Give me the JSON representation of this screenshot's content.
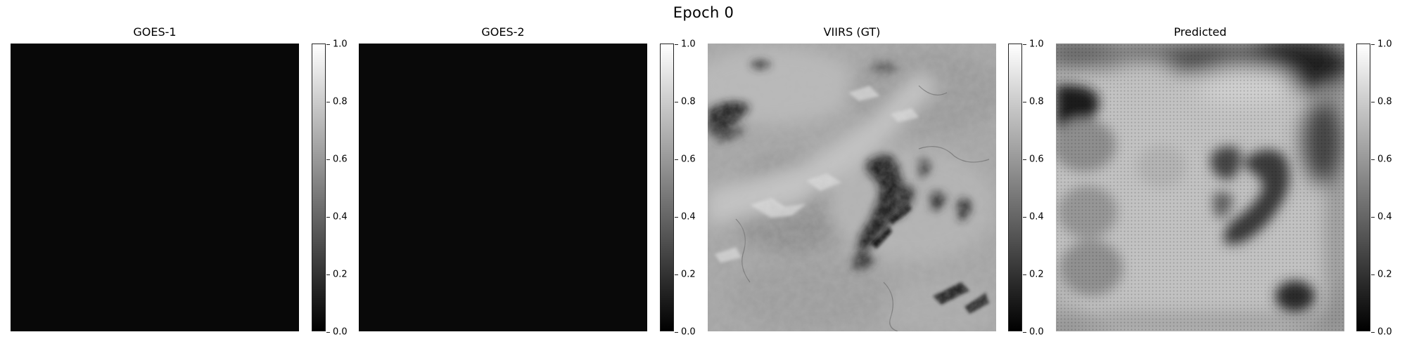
{
  "figure": {
    "suptitle": "Epoch 0"
  },
  "chart_data": [
    {
      "type": "heatmap",
      "title": "GOES-1",
      "colormap": "gray",
      "clim": [
        0,
        1
      ],
      "colorbar_ticks": [
        "0.0",
        "0.2",
        "0.4",
        "0.6",
        "0.8",
        "1.0"
      ],
      "appearance": "uniformly near-black"
    },
    {
      "type": "heatmap",
      "title": "GOES-2",
      "colormap": "gray",
      "clim": [
        0,
        1
      ],
      "colorbar_ticks": [
        "0.0",
        "0.2",
        "0.4",
        "0.6",
        "0.8",
        "1.0"
      ],
      "appearance": "uniformly near-black"
    },
    {
      "type": "heatmap",
      "title": "VIIRS (GT)",
      "colormap": "gray",
      "clim": [
        0,
        1
      ],
      "colorbar_ticks": [
        "0.0",
        "0.2",
        "0.4",
        "0.6",
        "0.8",
        "1.0"
      ],
      "appearance": "detailed satellite imagery, mostly light gray with dark cloud streaks"
    },
    {
      "type": "heatmap",
      "title": "Predicted",
      "colormap": "gray",
      "clim": [
        0,
        1
      ],
      "colorbar_ticks": [
        "0.0",
        "0.2",
        "0.4",
        "0.6",
        "0.8",
        "1.0"
      ],
      "appearance": "blurry light gray field with dark blobs and checkerboard artifacts"
    }
  ]
}
